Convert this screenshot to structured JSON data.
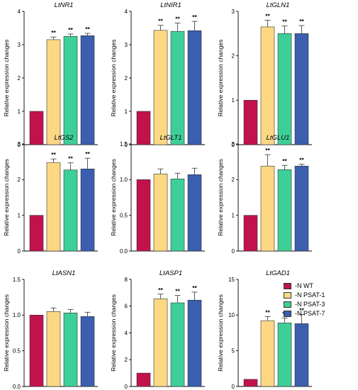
{
  "colors": {
    "-N WT": "#c2124c",
    "-N PSAT-1": "#fdd884",
    "-N PSAT-3": "#3ecf98",
    "-N PSAT-7": "#3b5eaf"
  },
  "legend": [
    "-N WT",
    "-N PSAT-1",
    "-N PSAT-3",
    "-N PSAT-7"
  ],
  "chart_data": [
    {
      "type": "bar",
      "title": "LtNR1",
      "ylabel": "Relative expression changes",
      "ylim": [
        0,
        4
      ],
      "yticks": [
        "0",
        "1",
        "2",
        "3",
        "4"
      ],
      "categories": [
        "-N WT",
        "-N PSAT-1",
        "-N PSAT-3",
        "-N PSAT-7"
      ],
      "values": [
        1.0,
        3.15,
        3.25,
        3.27
      ],
      "errors": [
        0,
        0.08,
        0.07,
        0.07
      ],
      "sig": [
        "",
        "**",
        "**",
        "**"
      ]
    },
    {
      "type": "bar",
      "title": "LtNIR1",
      "ylabel": "Relative expression changes",
      "ylim": [
        0,
        4
      ],
      "yticks": [
        "0",
        "1",
        "2",
        "3",
        "4"
      ],
      "categories": [
        "-N WT",
        "-N PSAT-1",
        "-N PSAT-3",
        "-N PSAT-7"
      ],
      "values": [
        1.0,
        3.43,
        3.4,
        3.42
      ],
      "errors": [
        0,
        0.15,
        0.25,
        0.28
      ],
      "sig": [
        "",
        "**",
        "**",
        "**"
      ]
    },
    {
      "type": "bar",
      "title": "LtGLN1",
      "ylabel": "Relative expression changes",
      "ylim": [
        0,
        3
      ],
      "yticks": [
        "0",
        "1",
        "2",
        "3"
      ],
      "categories": [
        "-N WT",
        "-N PSAT-1",
        "-N PSAT-3",
        "-N PSAT-7"
      ],
      "values": [
        1.0,
        2.65,
        2.5,
        2.5
      ],
      "errors": [
        0,
        0.15,
        0.17,
        0.18
      ],
      "sig": [
        "",
        "**",
        "**",
        "**"
      ]
    },
    {
      "type": "bar",
      "title": "LtGS2",
      "ylabel": "Relative expression changes",
      "ylim": [
        0,
        3
      ],
      "yticks": [
        "0",
        "1",
        "2",
        "3"
      ],
      "categories": [
        "-N WT",
        "-N PSAT-1",
        "-N PSAT-3",
        "-N PSAT-7"
      ],
      "values": [
        1.0,
        2.48,
        2.27,
        2.3
      ],
      "errors": [
        0,
        0.1,
        0.2,
        0.3
      ],
      "sig": [
        "",
        "**",
        "**",
        "**"
      ]
    },
    {
      "type": "bar",
      "title": "LtGLT1",
      "ylabel": "Relative expression changes",
      "ylim": [
        0,
        1.5
      ],
      "yticks": [
        "0.0",
        "0.5",
        "1.0",
        "1.5"
      ],
      "categories": [
        "-N WT",
        "-N PSAT-1",
        "-N PSAT-3",
        "-N PSAT-7"
      ],
      "values": [
        1.0,
        1.08,
        1.01,
        1.07
      ],
      "errors": [
        0,
        0.07,
        0.08,
        0.09
      ],
      "sig": [
        "",
        "",
        "",
        ""
      ]
    },
    {
      "type": "bar",
      "title": "LtGLU1",
      "ylabel": "Relative expression changes",
      "ylim": [
        0,
        3
      ],
      "yticks": [
        "0",
        "1",
        "2",
        "3"
      ],
      "categories": [
        "-N WT",
        "-N PSAT-1",
        "-N PSAT-3",
        "-N PSAT-7"
      ],
      "values": [
        1.0,
        2.38,
        2.28,
        2.38
      ],
      "errors": [
        0,
        0.32,
        0.12,
        0.05
      ],
      "sig": [
        "",
        "**",
        "**",
        "**"
      ]
    },
    {
      "type": "bar",
      "title": "LtASN1",
      "ylabel": "Relative expression changes",
      "ylim": [
        0,
        1.5
      ],
      "yticks": [
        "0.0",
        "0.5",
        "1.0",
        "1.5"
      ],
      "categories": [
        "-N WT",
        "-N PSAT-1",
        "-N PSAT-3",
        "-N PSAT-7"
      ],
      "values": [
        1.0,
        1.05,
        1.03,
        0.98
      ],
      "errors": [
        0,
        0.05,
        0.05,
        0.06
      ],
      "sig": [
        "",
        "",
        "",
        ""
      ]
    },
    {
      "type": "bar",
      "title": "LtASP1",
      "ylabel": "Relative expression changes",
      "ylim": [
        0,
        8
      ],
      "yticks": [
        "0",
        "2",
        "4",
        "6",
        "8"
      ],
      "categories": [
        "-N WT",
        "-N PSAT-1",
        "-N PSAT-3",
        "-N PSAT-7"
      ],
      "values": [
        1.0,
        6.55,
        6.25,
        6.45
      ],
      "errors": [
        0,
        0.35,
        0.55,
        0.6
      ],
      "sig": [
        "",
        "**",
        "**",
        "**"
      ]
    },
    {
      "type": "bar",
      "title": "LtGAD1",
      "ylabel": "Relative expression changes",
      "ylim": [
        0,
        15
      ],
      "yticks": [
        "0",
        "5",
        "10",
        "15"
      ],
      "categories": [
        "-N WT",
        "-N PSAT-1",
        "-N PSAT-3",
        "-N PSAT-7"
      ],
      "values": [
        1.0,
        9.2,
        8.9,
        8.8
      ],
      "errors": [
        0,
        0.6,
        0.7,
        1.3
      ],
      "sig": [
        "",
        "**",
        "**",
        "**"
      ]
    }
  ]
}
